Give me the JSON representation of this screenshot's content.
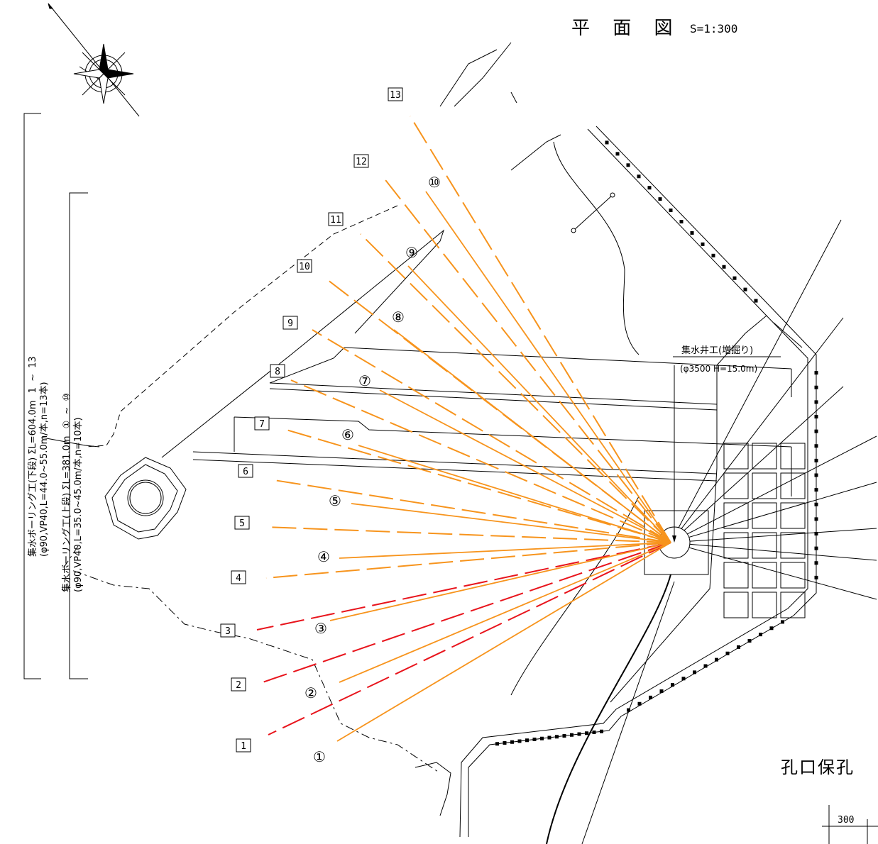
{
  "title": {
    "text": "平 面 図",
    "scale": "S=1:300"
  },
  "well": {
    "label": "集水井工(増掘り)",
    "spec": "(φ3500 H=15.0m)"
  },
  "lower_tier": {
    "label": "集水ボーリング工(下段) ΣL=604.0m",
    "range_start": "1",
    "range_sep": "~",
    "range_end": "13",
    "spec": "(φ90,VP40,L=44.0~55.0m/本,n=13本)",
    "bores": [
      "1",
      "2",
      "3",
      "4",
      "5",
      "6",
      "7",
      "8",
      "9",
      "10",
      "11",
      "12",
      "13"
    ]
  },
  "upper_tier": {
    "label": "集水ボーリング工(上段) ΣL=381.0m",
    "range_start": "①",
    "range_sep": "~",
    "range_end": "⑩",
    "spec": "(φ90,VP40,L=35.0~45.0m/本,n=10本)",
    "bores": [
      "①",
      "②",
      "③",
      "④",
      "⑤",
      "⑥",
      "⑦",
      "⑧",
      "⑨",
      "⑩"
    ]
  },
  "side_label": "孔口保孔",
  "dimension": "300",
  "colors": {
    "bore_orange": "#f7941d",
    "bore_red": "#e8141c",
    "line": "#000000"
  },
  "icons": {
    "north": "compass-rose-icon"
  }
}
